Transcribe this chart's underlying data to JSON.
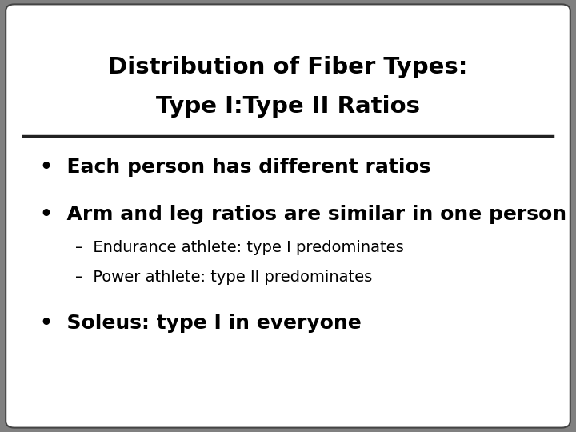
{
  "title_line1": "Distribution of Fiber Types:",
  "title_line2": "Type I:Type II Ratios",
  "bullet1": "Each person has different ratios",
  "bullet2": "Arm and leg ratios are similar in one person",
  "sub1": "Endurance athlete: type I predominates",
  "sub2": "Power athlete: type II predominates",
  "bullet3": "Soleus: type I in everyone",
  "bg_outer": "#808080",
  "bg_inner": "#ffffff",
  "title_color": "#000000",
  "text_color": "#000000",
  "divider_color": "#222222",
  "title_fontsize": 21,
  "bullet_fontsize": 18,
  "sub_fontsize": 14
}
